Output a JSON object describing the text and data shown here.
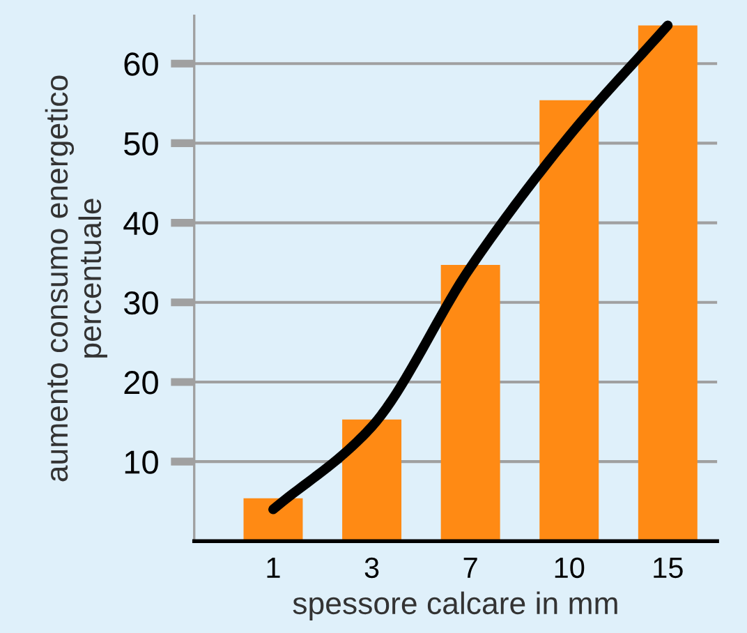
{
  "chart_data": {
    "type": "bar",
    "xlabel": "spessore calcare in mm",
    "ylabel": "aumento consumo energetico\npercentuale",
    "categories": [
      "1",
      "3",
      "7",
      "10",
      "15"
    ],
    "series": [
      {
        "color": "#ff8a14",
        "values": [
          5.4,
          15.3,
          34.7,
          55.4,
          64.8
        ]
      },
      {
        "type": "line",
        "color": "#000000",
        "values": [
          4,
          14.4,
          34.4,
          50.9,
          64.8
        ]
      }
    ],
    "ylim": [
      0,
      66
    ],
    "yticks": [
      10,
      20,
      30,
      40,
      50,
      60
    ],
    "grid": "y"
  }
}
